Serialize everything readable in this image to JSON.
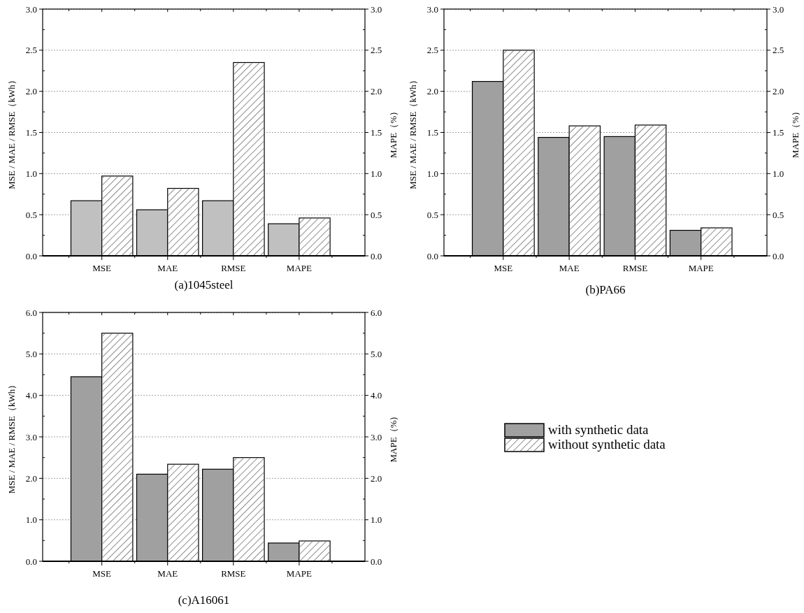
{
  "chart_data": [
    {
      "type": "bar",
      "title": "(a)1045steel",
      "ylabel": "MSE / MAE / RMSE（kWh）",
      "y2label": "MAPE（%）",
      "categories": [
        "MSE",
        "MAE",
        "RMSE",
        "MAPE"
      ],
      "series": [
        {
          "color": "#c0c0c0",
          "values": [
            0.67,
            0.56,
            0.67,
            0.39
          ]
        },
        {
          "color": "#ffffff",
          "values": [
            0.97,
            0.82,
            2.35,
            0.46
          ]
        }
      ],
      "ylim": [
        0,
        3
      ],
      "yticks": [
        {
          "value": 0,
          "label": "0.0"
        },
        {
          "value": 0.5,
          "label": "0.5"
        },
        {
          "value": 1,
          "label": "1.0"
        },
        {
          "value": 1.5,
          "label": "1.5"
        },
        {
          "value": 2,
          "label": "2.0"
        },
        {
          "value": 2.5,
          "label": "2.5"
        },
        {
          "value": 3,
          "label": "3.0"
        }
      ],
      "y2lim": [
        0,
        3
      ],
      "y2ticks": [
        {
          "value": 0,
          "label": "0.0"
        },
        {
          "value": 0.5,
          "label": "0.5"
        },
        {
          "value": 1,
          "label": "1.0"
        },
        {
          "value": 1.5,
          "label": "1.5"
        },
        {
          "value": 2,
          "label": "2.0"
        },
        {
          "value": 2.5,
          "label": "2.5"
        },
        {
          "value": 3,
          "label": "3.0"
        }
      ],
      "grid": "y"
    },
    {
      "type": "bar",
      "title": "(b)PA66",
      "ylabel": "MSE / MAE / RMSE（kWh）",
      "y2label": "MAPE（%）",
      "categories": [
        "MSE",
        "MAE",
        "RMSE",
        "MAPE"
      ],
      "series": [
        {
          "color": "#a0a0a0",
          "values": [
            2.12,
            1.44,
            1.45,
            0.31
          ]
        },
        {
          "color": "#ffffff",
          "values": [
            2.5,
            1.58,
            1.59,
            0.34
          ]
        }
      ],
      "ylim": [
        0,
        3
      ],
      "yticks": [
        {
          "value": 0,
          "label": "0.0"
        },
        {
          "value": 0.5,
          "label": "0.5"
        },
        {
          "value": 1,
          "label": "1.0"
        },
        {
          "value": 1.5,
          "label": "1.5"
        },
        {
          "value": 2,
          "label": "2.0"
        },
        {
          "value": 2.5,
          "label": "2.5"
        },
        {
          "value": 3,
          "label": "3.0"
        }
      ],
      "y2lim": [
        0,
        3
      ],
      "y2ticks": [
        {
          "value": 0,
          "label": "0.0"
        },
        {
          "value": 0.5,
          "label": "0.5"
        },
        {
          "value": 1,
          "label": "1.0"
        },
        {
          "value": 1.5,
          "label": "1.5"
        },
        {
          "value": 2,
          "label": "2.0"
        },
        {
          "value": 2.5,
          "label": "2.5"
        },
        {
          "value": 3,
          "label": "3.0"
        }
      ],
      "grid": "y"
    },
    {
      "type": "bar",
      "title": "(c)A16061",
      "ylabel": "MSE / MAE / RMSE（kWh）",
      "y2label": "MAPE（%）",
      "categories": [
        "MSE",
        "MAE",
        "RMSE",
        "MAPE"
      ],
      "series": [
        {
          "name": "with synthetic data",
          "color": "#a0a0a0",
          "values": [
            4.45,
            2.1,
            2.22,
            0.44
          ]
        },
        {
          "name": "without synthetic data",
          "color": "#ffffff",
          "values": [
            5.5,
            2.34,
            2.5,
            0.49
          ]
        }
      ],
      "ylim": [
        0,
        6
      ],
      "yticks": [
        {
          "value": 0,
          "label": "0.0"
        },
        {
          "value": 1,
          "label": "1.0"
        },
        {
          "value": 2,
          "label": "2.0"
        },
        {
          "value": 3,
          "label": "3.0"
        },
        {
          "value": 4,
          "label": "4.0"
        },
        {
          "value": 5,
          "label": "5.0"
        },
        {
          "value": 6,
          "label": "6.0"
        }
      ],
      "y2lim": [
        0,
        6
      ],
      "y2ticks": [
        {
          "value": 0,
          "label": "0.0"
        },
        {
          "value": 1,
          "label": "1.0"
        },
        {
          "value": 2,
          "label": "2.0"
        },
        {
          "value": 3,
          "label": "3.0"
        },
        {
          "value": 4,
          "label": "4.0"
        },
        {
          "value": 5,
          "label": "5.0"
        },
        {
          "value": 6,
          "label": "6.0"
        }
      ],
      "grid": "y",
      "legend": "right"
    }
  ]
}
